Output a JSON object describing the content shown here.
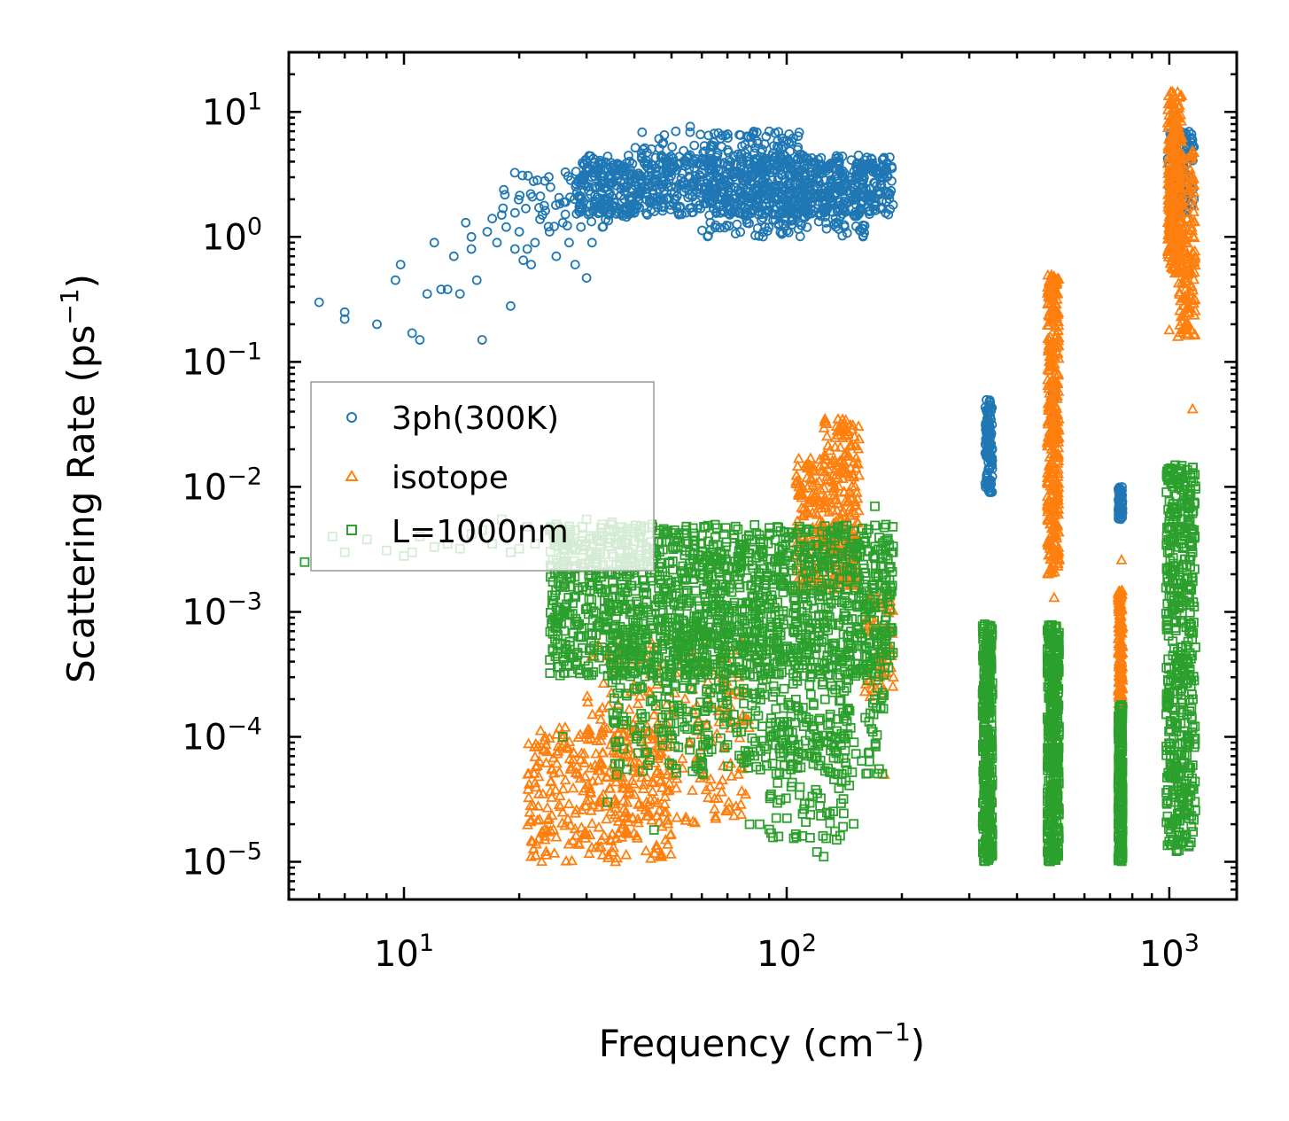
{
  "chart_data": {
    "type": "scatter",
    "title": "",
    "xlabel": "Frequency (cm",
    "xlabel_sup": "−1",
    "xlabel_end": ")",
    "ylabel": "Scattering Rate (ps",
    "ylabel_sup": "−1",
    "ylabel_end": ")",
    "xscale": "log",
    "yscale": "log",
    "xlim": [
      5,
      1500
    ],
    "ylim": [
      5e-06,
      30
    ],
    "x_ticks": [
      {
        "value": 10,
        "base": "10",
        "exp": "1"
      },
      {
        "value": 100,
        "base": "10",
        "exp": "2"
      },
      {
        "value": 1000,
        "base": "10",
        "exp": "3"
      }
    ],
    "y_ticks": [
      {
        "value": 10,
        "base": "10",
        "exp": "1"
      },
      {
        "value": 1,
        "base": "10",
        "exp": "0"
      },
      {
        "value": 0.1,
        "base": "10",
        "exp": "−1"
      },
      {
        "value": 0.01,
        "base": "10",
        "exp": "−2"
      },
      {
        "value": 0.001,
        "base": "10",
        "exp": "−3"
      },
      {
        "value": 0.0001,
        "base": "10",
        "exp": "−4"
      },
      {
        "value": 1e-05,
        "base": "10",
        "exp": "−5"
      }
    ],
    "legend_position": "center-left",
    "series": [
      {
        "name": "3ph(300K)",
        "marker": "circle",
        "color": "#1f77b4",
        "points": [
          [
            6,
            0.3
          ],
          [
            7,
            0.25
          ],
          [
            7,
            0.22
          ],
          [
            8.5,
            0.2
          ],
          [
            9.5,
            0.45
          ],
          [
            9.8,
            0.6
          ],
          [
            10.5,
            0.17
          ],
          [
            11,
            0.15
          ],
          [
            11.5,
            0.35
          ],
          [
            12,
            0.9
          ],
          [
            12.5,
            0.38
          ],
          [
            13,
            0.38
          ],
          [
            13.5,
            0.7
          ],
          [
            14,
            0.35
          ],
          [
            14.5,
            1.3
          ],
          [
            15,
            0.8
          ],
          [
            15,
            1.0
          ],
          [
            15.5,
            0.45
          ],
          [
            16,
            0.15
          ],
          [
            16.5,
            1.1
          ],
          [
            17,
            1.4
          ],
          [
            17.5,
            0.9
          ],
          [
            18,
            1.5
          ],
          [
            18.5,
            1.2
          ],
          [
            19,
            0.28
          ],
          [
            19.5,
            0.8
          ],
          [
            20,
            1.1
          ],
          [
            20.5,
            0.65
          ],
          [
            21,
            0.8
          ],
          [
            21.5,
            0.6
          ],
          [
            22,
            0.9
          ],
          [
            23,
            1.5
          ],
          [
            24,
            1.1
          ],
          [
            25,
            0.7
          ],
          [
            26,
            1.3
          ],
          [
            27,
            0.9
          ],
          [
            28,
            0.6
          ],
          [
            29,
            1.2
          ],
          [
            30,
            0.47
          ],
          [
            31,
            0.9
          ],
          [
            33,
            1.2
          ]
        ],
        "bands": [
          {
            "x": [
              18,
              45
            ],
            "y_lo": 1.2,
            "y_hi": 3.5,
            "n": 80
          },
          {
            "x": [
              28,
              190
            ],
            "y_lo": 1.5,
            "y_hi": 4.5,
            "n": 900
          },
          {
            "x": [
              40,
              60
            ],
            "y_lo": 2.5,
            "y_hi": 8.0,
            "n": 40
          },
          {
            "x": [
              60,
              110
            ],
            "y_lo": 1.0,
            "y_hi": 7.0,
            "n": 250
          },
          {
            "x": [
              110,
              160
            ],
            "y_lo": 1.0,
            "y_hi": 4.0,
            "n": 120
          },
          {
            "x": [
              330,
              345
            ],
            "y_lo": 0.009,
            "y_hi": 0.05,
            "n": 120
          },
          {
            "x": [
              495,
              505
            ],
            "y_lo": 0.03,
            "y_hi": 0.06,
            "n": 15
          },
          {
            "x": [
              735,
              755
            ],
            "y_lo": 0.0055,
            "y_hi": 0.01,
            "n": 70
          },
          {
            "x": [
              990,
              1160
            ],
            "y_lo": 1.5,
            "y_hi": 7.0,
            "n": 120
          }
        ]
      },
      {
        "name": "isotope",
        "marker": "triangle",
        "color": "#ff7f0e",
        "points": [
          [
            180,
            5e-05
          ],
          [
            1150,
            0.042
          ],
          [
            1100,
            0.18
          ],
          [
            1000,
            0.18
          ],
          [
            750,
            0.0026
          ],
          [
            500,
            0.0013
          ],
          [
            175,
            0.0004
          ],
          [
            190,
            0.0003
          ],
          [
            75,
            0.0003
          ],
          [
            60,
            0.0004
          ],
          [
            45,
            0.00015
          ]
        ],
        "bands": [
          {
            "x": [
              21,
              50
            ],
            "y_lo": 1e-05,
            "y_hi": 0.00012,
            "n": 300
          },
          {
            "x": [
              30,
              80
            ],
            "y_lo": 2e-05,
            "y_hi": 0.0006,
            "n": 250
          },
          {
            "x": [
              105,
              125
            ],
            "y_lo": 0.0015,
            "y_hi": 0.017,
            "n": 120
          },
          {
            "x": [
              125,
              155
            ],
            "y_lo": 0.0015,
            "y_hi": 0.035,
            "n": 220
          },
          {
            "x": [
              160,
              190
            ],
            "y_lo": 0.0002,
            "y_hi": 0.0015,
            "n": 60
          },
          {
            "x": [
              480,
              515
            ],
            "y_lo": 0.002,
            "y_hi": 0.5,
            "n": 350
          },
          {
            "x": [
              735,
              755
            ],
            "y_lo": 0.00018,
            "y_hi": 0.0015,
            "n": 150
          },
          {
            "x": [
              990,
              1080
            ],
            "y_lo": 0.5,
            "y_hi": 15.0,
            "n": 300
          },
          {
            "x": [
              1050,
              1170
            ],
            "y_lo": 0.15,
            "y_hi": 5.0,
            "n": 150
          }
        ]
      },
      {
        "name": "L=1000nm",
        "marker": "square",
        "color": "#2ca02c",
        "points": [
          [
            5.5,
            0.0025
          ],
          [
            6.5,
            0.004
          ],
          [
            7,
            0.003
          ],
          [
            8,
            0.0038
          ],
          [
            9,
            0.0031
          ],
          [
            10,
            0.0028
          ],
          [
            10.5,
            0.003
          ],
          [
            11,
            0.004
          ],
          [
            12,
            0.0033
          ],
          [
            13,
            0.0035
          ],
          [
            14,
            0.0032
          ],
          [
            15,
            0.0042
          ],
          [
            16,
            0.0045
          ],
          [
            17,
            0.0035
          ],
          [
            18,
            0.0055
          ],
          [
            19,
            0.003
          ],
          [
            20,
            0.0032
          ],
          [
            21,
            0.0048
          ],
          [
            22,
            0.0035
          ],
          [
            24,
            0.0045
          ],
          [
            25,
            0.005
          ],
          [
            26,
            0.0032
          ],
          [
            28,
            0.0045
          ],
          [
            30,
            0.0055
          ],
          [
            34,
            0.0038
          ],
          [
            35,
            0.0052
          ],
          [
            32,
            0.0024
          ],
          [
            33,
            0.005
          ],
          [
            26,
            0.0001
          ],
          [
            34,
            3e-05
          ],
          [
            36,
            5e-05
          ],
          [
            45,
            1.8e-05
          ],
          [
            80,
            2e-05
          ],
          [
            85,
            2e-05
          ],
          [
            120,
            1.2e-05
          ],
          [
            125,
            1.1e-05
          ],
          [
            135,
            1.5e-05
          ],
          [
            170,
            0.007
          ]
        ],
        "bands": [
          {
            "x": [
              24,
              190
            ],
            "y_lo": 0.0003,
            "y_hi": 0.005,
            "n": 1500
          },
          {
            "x": [
              35,
              180
            ],
            "y_lo": 5e-05,
            "y_hi": 0.0008,
            "n": 500
          },
          {
            "x": [
              90,
              150
            ],
            "y_lo": 1.5e-05,
            "y_hi": 0.0002,
            "n": 120
          },
          {
            "x": [
              325,
              345
            ],
            "y_lo": 1e-05,
            "y_hi": 0.0008,
            "n": 350
          },
          {
            "x": [
              480,
              515
            ],
            "y_lo": 1e-05,
            "y_hi": 0.0008,
            "n": 400
          },
          {
            "x": [
              735,
              755
            ],
            "y_lo": 1e-05,
            "y_hi": 0.00018,
            "n": 250
          },
          {
            "x": [
              980,
              1170
            ],
            "y_lo": 1.2e-05,
            "y_hi": 0.015,
            "n": 500
          }
        ]
      }
    ]
  }
}
